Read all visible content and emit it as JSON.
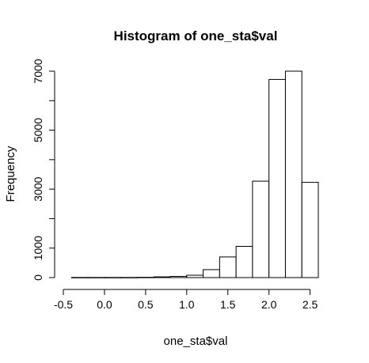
{
  "chart_data": {
    "type": "bar",
    "title": "Histogram of one_sta$val",
    "xlabel": "one_sta$val",
    "ylabel": "Frequency",
    "xlim": [
      -0.5,
      2.6
    ],
    "ylim": [
      0,
      7000
    ],
    "x_ticks": [
      "-0.5",
      "0.0",
      "0.5",
      "1.0",
      "1.5",
      "2.0",
      "2.5"
    ],
    "y_ticks": [
      "0",
      "1000",
      "3000",
      "5000",
      "7000"
    ],
    "bin_edges": [
      -0.4,
      -0.2,
      0.0,
      0.2,
      0.4,
      0.6,
      0.8,
      1.0,
      1.2,
      1.4,
      1.6,
      1.8,
      2.0,
      2.2,
      2.4,
      2.6
    ],
    "values": [
      5,
      5,
      5,
      5,
      10,
      25,
      40,
      80,
      270,
      700,
      1060,
      3270,
      6720,
      7000,
      3230
    ],
    "grid": false,
    "bar_fill": "#ffffff",
    "bar_stroke": "#000000"
  }
}
